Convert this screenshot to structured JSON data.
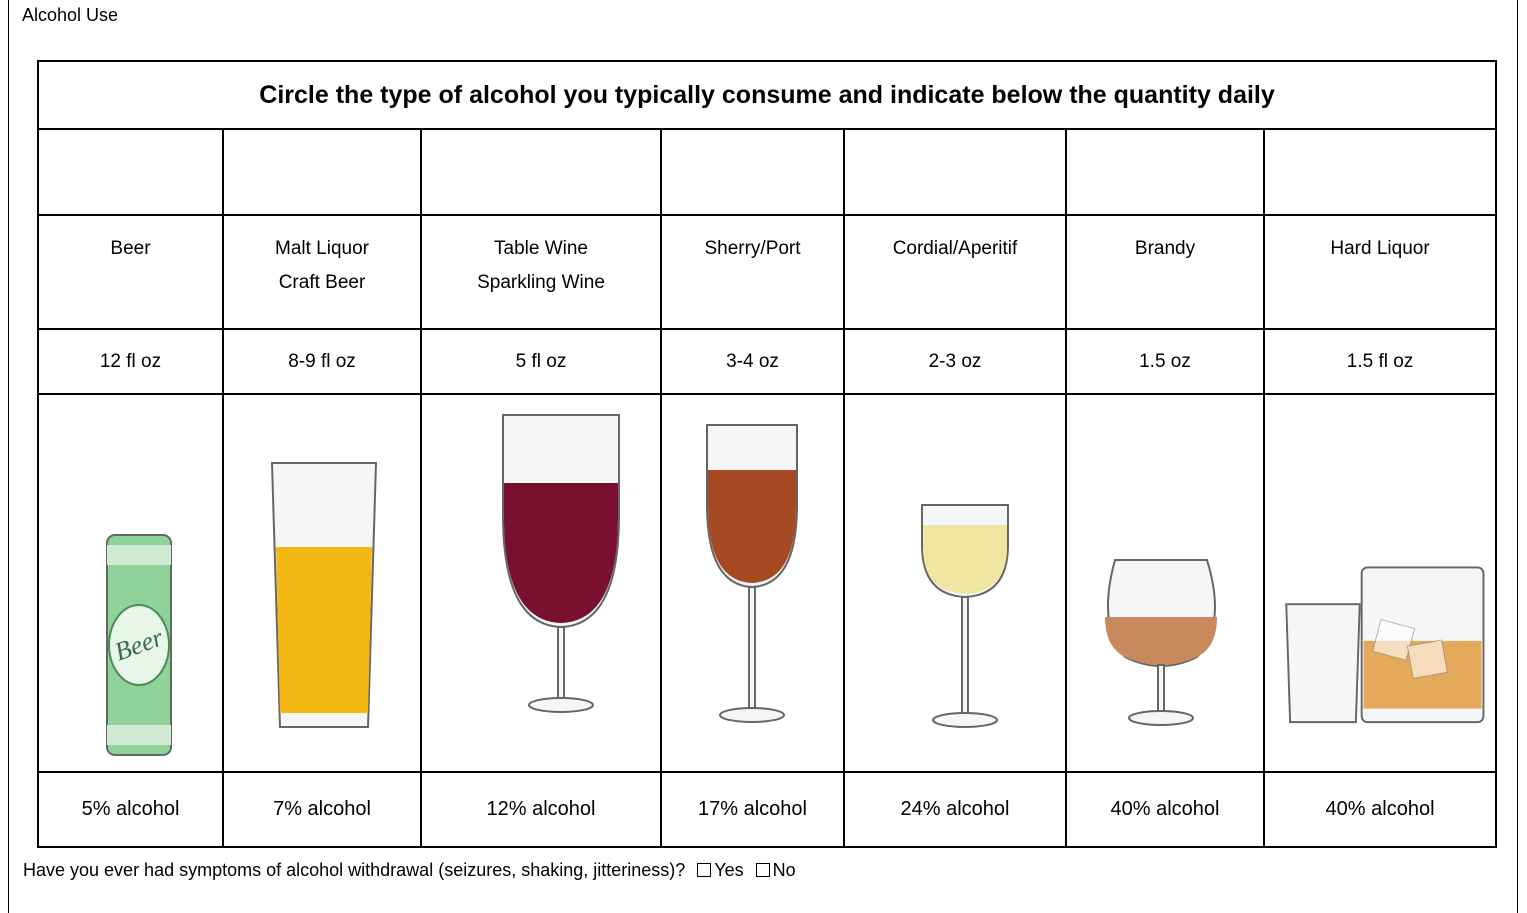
{
  "header": {
    "title": "Alcohol Use"
  },
  "table": {
    "title": "Circle the type of alcohol you typically consume and indicate below the quantity daily",
    "columns": [
      {
        "name": [
          "Beer"
        ],
        "quantity": "12 fl oz",
        "alcohol": "5% alcohol",
        "can_label": "Beer"
      },
      {
        "name": [
          "Malt Liquor",
          "Craft Beer"
        ],
        "quantity": "8-9 fl oz",
        "alcohol": "7% alcohol"
      },
      {
        "name": [
          "Table Wine",
          "Sparkling Wine"
        ],
        "quantity": "5 fl oz",
        "alcohol": "12% alcohol"
      },
      {
        "name": [
          "Sherry/Port"
        ],
        "quantity": "3-4 oz",
        "alcohol": "17% alcohol"
      },
      {
        "name": [
          "Cordial/Aperitif"
        ],
        "quantity": "2-3 oz",
        "alcohol": "24% alcohol"
      },
      {
        "name": [
          "Brandy"
        ],
        "quantity": "1.5 oz",
        "alcohol": "40% alcohol"
      },
      {
        "name": [
          "Hard Liquor"
        ],
        "quantity": "1.5 fl oz",
        "alcohol": "40% alcohol"
      }
    ]
  },
  "question": {
    "text": "Have you ever had symptoms of alcohol withdrawal (seizures, shaking, jitteriness)?",
    "options": [
      "Yes",
      "No"
    ]
  }
}
